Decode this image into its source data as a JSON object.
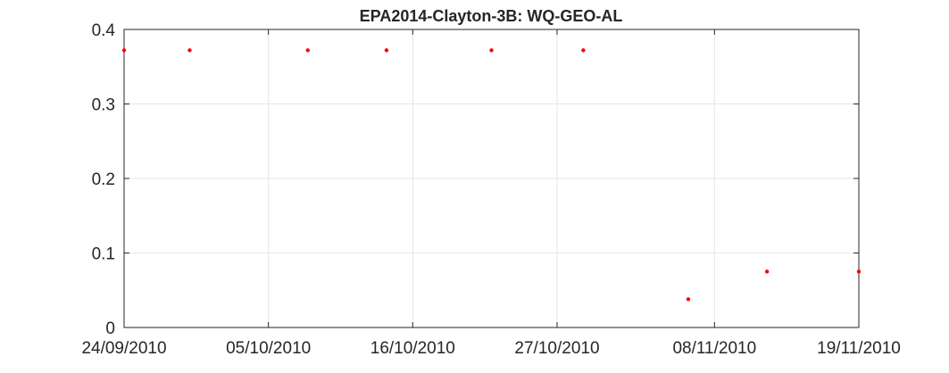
{
  "chart_data": {
    "type": "scatter",
    "title": "EPA2014-Clayton-3B: WQ-GEO-AL",
    "xlabel": "",
    "ylabel": "",
    "xlim": [
      "2010-09-24",
      "2010-11-19"
    ],
    "ylim": [
      0,
      0.4
    ],
    "x_ticks": [
      "24/09/2010",
      "05/10/2010",
      "16/10/2010",
      "27/10/2010",
      "08/11/2010",
      "19/11/2010"
    ],
    "y_ticks": [
      "0",
      "0.1",
      "0.2",
      "0.3",
      "0.4"
    ],
    "grid": true,
    "marker_color": "#ff0000",
    "series": [
      {
        "x": [
          "2010-09-24",
          "2010-09-29",
          "2010-10-08",
          "2010-10-14",
          "2010-10-22",
          "2010-10-29",
          "2010-11-06",
          "2010-11-12",
          "2010-11-19"
        ],
        "y": [
          0.372,
          0.372,
          0.372,
          0.372,
          0.372,
          0.372,
          0.038,
          0.075,
          0.075
        ]
      }
    ]
  }
}
